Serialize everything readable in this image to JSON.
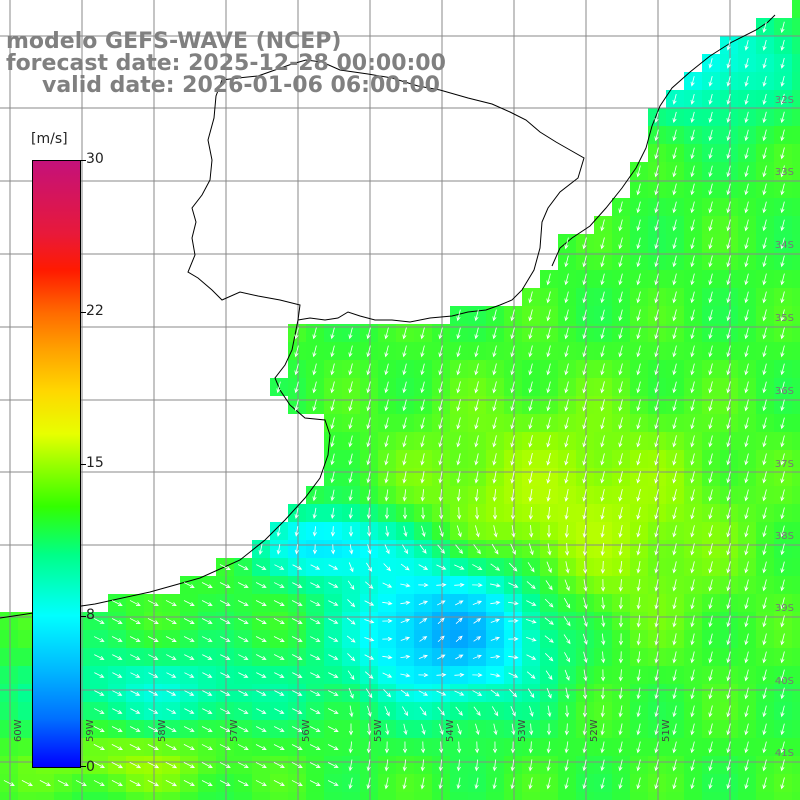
{
  "title": {
    "line1": "modelo GEFS-WAVE (NCEP)",
    "line2": "forecast date: 2025-12-28 00:00:00",
    "line3": "valid date: 2026-01-06 06:00:00"
  },
  "colorbar": {
    "unit": "[m/s]",
    "ticks": [
      "30",
      "22",
      "15",
      "8",
      "0"
    ],
    "tick_values": [
      30,
      22,
      15,
      8,
      0
    ],
    "min": 0,
    "max": 30
  },
  "lon_labels": [
    "60W",
    "59W",
    "58W",
    "57W",
    "56W",
    "55W",
    "54W",
    "53W",
    "52W",
    "51W"
  ],
  "lat_labels": [
    "32S",
    "33S",
    "34S",
    "35S",
    "36S",
    "37S",
    "38S",
    "39S",
    "40S",
    "41S"
  ],
  "colors": {
    "land": "#ffffff",
    "grid": "#888888",
    "coast": "#000000",
    "arrow": "#ffffff",
    "title": "#808080"
  },
  "field": {
    "description_units": "m/s",
    "grid_lon_range": [
      -60.5,
      -50.0
    ],
    "grid_lat_range": [
      -41.5,
      -31.0
    ]
  }
}
